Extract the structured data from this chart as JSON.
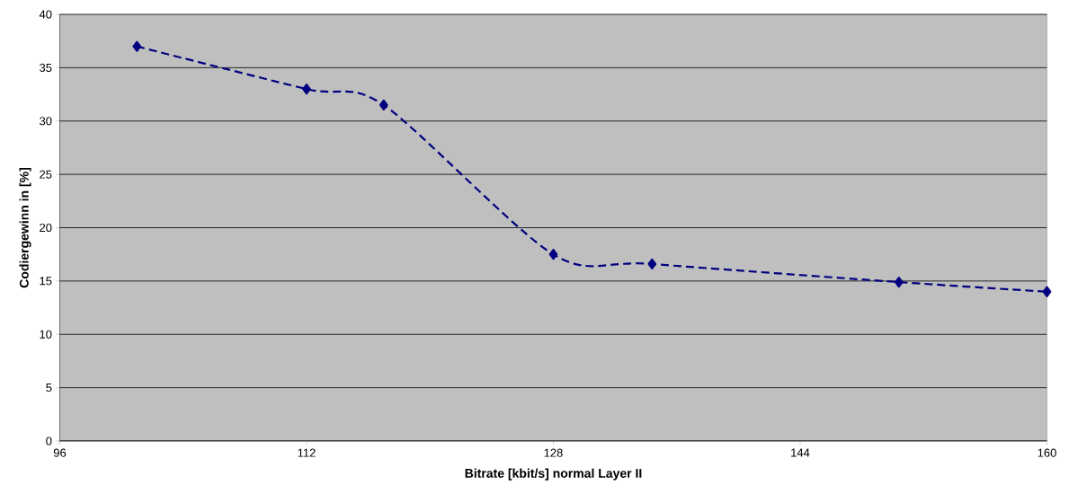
{
  "chart_data": {
    "type": "line",
    "xlabel": "Bitrate [kbit/s] normal Layer II",
    "ylabel": "Codiergewinn in [%]",
    "x": [
      101,
      112,
      117,
      128,
      134.4,
      150.4,
      160
    ],
    "series": [
      {
        "color": "#000080",
        "values": [
          37,
          33,
          31.5,
          17.5,
          16.6,
          14.9,
          14
        ]
      }
    ],
    "xlim": [
      96,
      160
    ],
    "xticks": [
      96,
      112,
      128,
      144,
      160
    ],
    "ylim": [
      0,
      40
    ],
    "yticks": [
      0,
      5,
      10,
      15,
      20,
      25,
      30,
      35,
      40
    ],
    "grid": "y",
    "marker": "diamond",
    "line_style": "dashed"
  }
}
